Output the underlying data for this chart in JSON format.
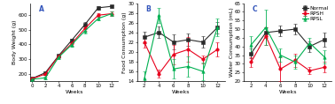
{
  "panel_A": {
    "title": "A",
    "xlabel": "Weeks",
    "ylabel": "Body Weight (g)",
    "xlim": [
      -0.3,
      13
    ],
    "ylim": [
      150,
      680
    ],
    "yticks": [
      200,
      300,
      400,
      500,
      600
    ],
    "xticks": [
      0,
      2,
      4,
      6,
      8,
      10,
      12
    ],
    "normal_x": [
      0,
      2,
      4,
      6,
      8,
      10,
      12
    ],
    "normal_y": [
      168,
      207,
      322,
      428,
      535,
      648,
      658
    ],
    "normal_err": [
      4,
      7,
      10,
      12,
      15,
      12,
      10
    ],
    "rpsh_x": [
      0,
      2,
      4,
      6,
      8,
      10,
      12
    ],
    "rpsh_y": [
      166,
      198,
      318,
      405,
      508,
      598,
      608
    ],
    "rpsh_err": [
      4,
      7,
      12,
      15,
      15,
      13,
      13
    ],
    "rpsl_x": [
      0,
      2,
      4,
      6,
      8,
      10,
      12
    ],
    "rpsl_y": [
      163,
      172,
      312,
      398,
      492,
      575,
      608
    ],
    "rpsl_err": [
      4,
      9,
      12,
      15,
      18,
      13,
      13
    ]
  },
  "panel_B": {
    "title": "B",
    "xlabel": "Weeks",
    "ylabel": "Food Consumption (g)",
    "xlim": [
      1,
      13
    ],
    "ylim": [
      14,
      30
    ],
    "yticks": [
      14,
      16,
      18,
      20,
      22,
      24,
      26,
      28,
      30
    ],
    "xticks": [
      2,
      4,
      6,
      8,
      10,
      12
    ],
    "normal_x": [
      2,
      4,
      6,
      8,
      10,
      12
    ],
    "normal_y": [
      23.0,
      24.0,
      22.0,
      22.5,
      22.0,
      25.0
    ],
    "normal_err": [
      1.2,
      1.2,
      1.5,
      1.2,
      1.2,
      1.2
    ],
    "rpsh_x": [
      2,
      4,
      6,
      8,
      10,
      12
    ],
    "rpsh_y": [
      22.0,
      15.5,
      19.5,
      20.5,
      18.5,
      20.5
    ],
    "rpsh_err": [
      1.2,
      0.8,
      2.0,
      2.5,
      0.8,
      1.5
    ],
    "rpsl_x": [
      2,
      4,
      6,
      8,
      10,
      12
    ],
    "rpsl_y": [
      14.5,
      27.5,
      16.5,
      17.0,
      16.0,
      25.0
    ],
    "rpsl_err": [
      1.5,
      1.5,
      2.0,
      2.0,
      1.8,
      1.8
    ]
  },
  "panel_C": {
    "title": "C",
    "xlabel": "Weeks",
    "ylabel": "Water Consumption (mL)",
    "xlim": [
      1,
      13
    ],
    "ylim": [
      20,
      65
    ],
    "yticks": [
      20,
      25,
      30,
      35,
      40,
      45,
      50,
      55,
      60,
      65
    ],
    "xticks": [
      2,
      4,
      6,
      8,
      10,
      12
    ],
    "normal_x": [
      2,
      4,
      6,
      8,
      10,
      12
    ],
    "normal_y": [
      36,
      48,
      49,
      50,
      40,
      44
    ],
    "normal_err": [
      3,
      3,
      3,
      3,
      3,
      4
    ],
    "rpsh_x": [
      2,
      4,
      6,
      8,
      10,
      12
    ],
    "rpsh_y": [
      31,
      46,
      27,
      32,
      26,
      28
    ],
    "rpsh_err": [
      3,
      5,
      7,
      4,
      2,
      3
    ],
    "rpsl_x": [
      2,
      4,
      6,
      8,
      10,
      12
    ],
    "rpsl_y": [
      41,
      51,
      35,
      31,
      42,
      34
    ],
    "rpsl_err": [
      5,
      10,
      4,
      4,
      3,
      4
    ]
  },
  "legend_labels": [
    "Normal",
    "RPSH",
    "RPSL"
  ],
  "colors": [
    "#2b2b2b",
    "#e8001c",
    "#00b050"
  ],
  "markers": [
    "s",
    "o",
    "^"
  ],
  "markersize": 2.5,
  "linewidth": 0.8,
  "capsize": 1.5,
  "elinewidth": 0.6,
  "markeredgewidth": 0.4,
  "fontsize_label": 4.5,
  "fontsize_tick": 4.0,
  "fontsize_title": 5.5,
  "fontsize_legend": 4.2,
  "title_color": "#3355bb"
}
